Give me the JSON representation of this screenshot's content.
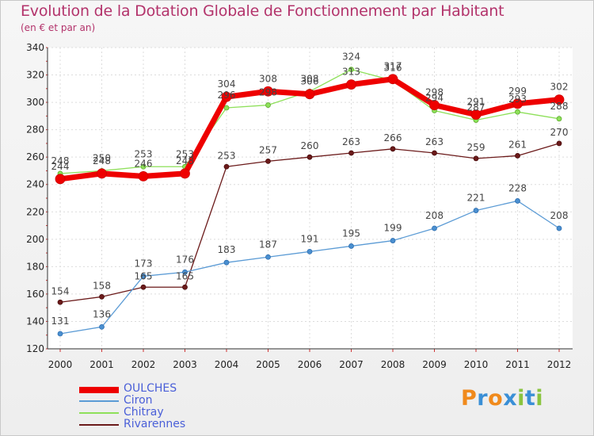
{
  "chart_data": {
    "type": "line",
    "title": "Evolution de la Dotation Globale de Fonctionnement par Habitant",
    "subtitle": "(en € et par an)",
    "xlabel": "",
    "ylabel": "",
    "ylim": [
      120,
      340
    ],
    "yticks": [
      120,
      140,
      160,
      180,
      200,
      220,
      240,
      260,
      280,
      300,
      320,
      340
    ],
    "categories": [
      "2000",
      "2001",
      "2002",
      "2003",
      "2004",
      "2005",
      "2006",
      "2007",
      "2008",
      "2009",
      "2010",
      "2011",
      "2012"
    ],
    "grid": true,
    "legend_position": "bottom-left",
    "series": [
      {
        "name": "Rivarennes",
        "color": "#6b1a1a",
        "values": [
          154,
          158,
          165,
          165,
          253,
          257,
          260,
          263,
          266,
          263,
          259,
          261,
          270
        ]
      },
      {
        "name": "Ciron",
        "color": "#5b9bd5",
        "values": [
          131,
          136,
          173,
          176,
          183,
          187,
          191,
          195,
          199,
          208,
          221,
          228,
          208
        ]
      },
      {
        "name": "Chitray",
        "color": "#8ee05a",
        "values": [
          248,
          250,
          253,
          253,
          296,
          298,
          308,
          324,
          316,
          294,
          287,
          293,
          288
        ]
      },
      {
        "name": "OULCHES",
        "color": "#ee0000",
        "values": [
          244,
          248,
          246,
          248,
          304,
          308,
          306,
          313,
          317,
          298,
          291,
          299,
          302
        ]
      }
    ]
  },
  "legend": {
    "items": [
      {
        "label": "OULCHES",
        "color": "#ee0000"
      },
      {
        "label": "Ciron",
        "color": "#5b9bd5"
      },
      {
        "label": "Chitray",
        "color": "#8ee05a"
      },
      {
        "label": "Rivarennes",
        "color": "#6b1a1a"
      }
    ]
  },
  "logo": {
    "text": "Proxiti",
    "letters": [
      "P",
      "r",
      "o",
      "x",
      "i",
      "t",
      "i"
    ],
    "colors": [
      "#f08a1c",
      "#3a8fd6",
      "#f08a1c",
      "#3a8fd6",
      "#8ac43f",
      "#3a8fd6",
      "#8ac43f"
    ]
  }
}
